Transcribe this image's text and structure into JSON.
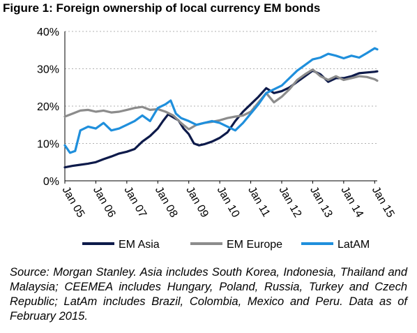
{
  "title": "Figure 1: Foreign ownership of local currency EM bonds",
  "source": "Source: Morgan Stanley. Asia includes South Korea, Indonesia, Thailand and Malaysia; CEEMEA includes Hungary, Poland, Russia, Turkey and Czech Republic; LatAm includes Brazil, Colombia, Mexico and Peru. Data as of February 2015.",
  "chart_data": {
    "type": "line",
    "title": "Figure 1: Foreign ownership of local currency EM bonds",
    "xlabel": "",
    "ylabel": "",
    "x_ticks": [
      "Jan 05",
      "Jan 06",
      "Jan 07",
      "Jan 08",
      "Jan 09",
      "Jan 10",
      "Jan 11",
      "Jan 12",
      "Jan 13",
      "Jan 14",
      "Jan 15"
    ],
    "y_ticks": [
      "0%",
      "10%",
      "20%",
      "30%",
      "40%"
    ],
    "ylim": [
      0,
      40
    ],
    "xlim": [
      "2005-01",
      "2015-02"
    ],
    "grid": "horizontal dashed",
    "legend": "bottom",
    "series": [
      {
        "name": "EM Asia",
        "color": "#0d1a4a",
        "points": [
          [
            "2005-01",
            3.6
          ],
          [
            "2005-04",
            4.0
          ],
          [
            "2005-07",
            4.3
          ],
          [
            "2005-10",
            4.6
          ],
          [
            "2006-01",
            5.0
          ],
          [
            "2006-04",
            5.8
          ],
          [
            "2006-07",
            6.5
          ],
          [
            "2006-10",
            7.3
          ],
          [
            "2007-01",
            7.8
          ],
          [
            "2007-04",
            8.5
          ],
          [
            "2007-07",
            10.5
          ],
          [
            "2007-10",
            12.0
          ],
          [
            "2008-01",
            14.0
          ],
          [
            "2008-03",
            16.0
          ],
          [
            "2008-05",
            17.8
          ],
          [
            "2008-07",
            17.0
          ],
          [
            "2008-09",
            16.2
          ],
          [
            "2008-11",
            14.0
          ],
          [
            "2009-01",
            12.5
          ],
          [
            "2009-03",
            10.0
          ],
          [
            "2009-05",
            9.5
          ],
          [
            "2009-07",
            9.8
          ],
          [
            "2009-10",
            10.5
          ],
          [
            "2010-01",
            11.5
          ],
          [
            "2010-04",
            13.0
          ],
          [
            "2010-07",
            16.0
          ],
          [
            "2010-10",
            18.5
          ],
          [
            "2011-01",
            20.5
          ],
          [
            "2011-04",
            22.5
          ],
          [
            "2011-07",
            24.8
          ],
          [
            "2011-10",
            23.5
          ],
          [
            "2012-01",
            24.0
          ],
          [
            "2012-04",
            25.0
          ],
          [
            "2012-07",
            26.5
          ],
          [
            "2012-10",
            28.0
          ],
          [
            "2013-01",
            29.5
          ],
          [
            "2013-04",
            28.5
          ],
          [
            "2013-07",
            26.5
          ],
          [
            "2013-10",
            27.5
          ],
          [
            "2014-01",
            27.5
          ],
          [
            "2014-04",
            28.0
          ],
          [
            "2014-07",
            28.8
          ],
          [
            "2014-10",
            29.0
          ],
          [
            "2015-01",
            29.2
          ],
          [
            "2015-02",
            29.3
          ]
        ]
      },
      {
        "name": "EM Europe",
        "color": "#8c8c8c",
        "points": [
          [
            "2005-01",
            17.2
          ],
          [
            "2005-04",
            18.0
          ],
          [
            "2005-07",
            18.8
          ],
          [
            "2005-10",
            19.0
          ],
          [
            "2006-01",
            18.5
          ],
          [
            "2006-04",
            18.8
          ],
          [
            "2006-07",
            18.3
          ],
          [
            "2006-10",
            18.5
          ],
          [
            "2007-01",
            19.0
          ],
          [
            "2007-04",
            19.5
          ],
          [
            "2007-07",
            19.8
          ],
          [
            "2007-10",
            19.0
          ],
          [
            "2008-01",
            19.2
          ],
          [
            "2008-04",
            18.5
          ],
          [
            "2008-07",
            17.5
          ],
          [
            "2008-10",
            15.5
          ],
          [
            "2009-01",
            13.8
          ],
          [
            "2009-04",
            15.0
          ],
          [
            "2009-07",
            15.5
          ],
          [
            "2009-10",
            15.8
          ],
          [
            "2010-01",
            16.2
          ],
          [
            "2010-04",
            16.8
          ],
          [
            "2010-07",
            17.2
          ],
          [
            "2010-10",
            17.5
          ],
          [
            "2011-01",
            18.5
          ],
          [
            "2011-04",
            21.0
          ],
          [
            "2011-07",
            23.5
          ],
          [
            "2011-10",
            21.0
          ],
          [
            "2012-01",
            22.5
          ],
          [
            "2012-04",
            24.5
          ],
          [
            "2012-07",
            27.0
          ],
          [
            "2012-10",
            28.5
          ],
          [
            "2013-01",
            29.8
          ],
          [
            "2013-04",
            28.0
          ],
          [
            "2013-07",
            27.0
          ],
          [
            "2013-10",
            28.0
          ],
          [
            "2014-01",
            27.0
          ],
          [
            "2014-04",
            27.5
          ],
          [
            "2014-07",
            28.0
          ],
          [
            "2014-10",
            27.8
          ],
          [
            "2015-01",
            27.2
          ],
          [
            "2015-02",
            26.8
          ]
        ]
      },
      {
        "name": "LatAM",
        "color": "#1f8fdc",
        "points": [
          [
            "2005-01",
            9.5
          ],
          [
            "2005-03",
            7.5
          ],
          [
            "2005-05",
            8.0
          ],
          [
            "2005-07",
            13.5
          ],
          [
            "2005-10",
            14.5
          ],
          [
            "2006-01",
            14.0
          ],
          [
            "2006-04",
            15.5
          ],
          [
            "2006-07",
            13.5
          ],
          [
            "2006-10",
            14.0
          ],
          [
            "2007-01",
            15.0
          ],
          [
            "2007-04",
            16.0
          ],
          [
            "2007-07",
            17.5
          ],
          [
            "2007-10",
            16.0
          ],
          [
            "2008-01",
            19.5
          ],
          [
            "2008-04",
            20.5
          ],
          [
            "2008-06",
            21.5
          ],
          [
            "2008-08",
            18.0
          ],
          [
            "2008-10",
            16.8
          ],
          [
            "2009-01",
            16.0
          ],
          [
            "2009-04",
            15.0
          ],
          [
            "2009-07",
            15.5
          ],
          [
            "2009-10",
            16.0
          ],
          [
            "2010-01",
            15.5
          ],
          [
            "2010-04",
            14.5
          ],
          [
            "2010-07",
            13.5
          ],
          [
            "2010-10",
            15.5
          ],
          [
            "2011-01",
            18.0
          ],
          [
            "2011-04",
            20.5
          ],
          [
            "2011-07",
            23.5
          ],
          [
            "2011-10",
            24.5
          ],
          [
            "2012-01",
            25.5
          ],
          [
            "2012-04",
            27.5
          ],
          [
            "2012-07",
            29.5
          ],
          [
            "2012-10",
            31.0
          ],
          [
            "2013-01",
            32.5
          ],
          [
            "2013-04",
            33.0
          ],
          [
            "2013-07",
            34.0
          ],
          [
            "2013-10",
            33.5
          ],
          [
            "2014-01",
            32.8
          ],
          [
            "2014-04",
            33.5
          ],
          [
            "2014-07",
            33.0
          ],
          [
            "2014-10",
            34.2
          ],
          [
            "2015-01",
            35.5
          ],
          [
            "2015-02",
            35.2
          ]
        ]
      }
    ]
  }
}
